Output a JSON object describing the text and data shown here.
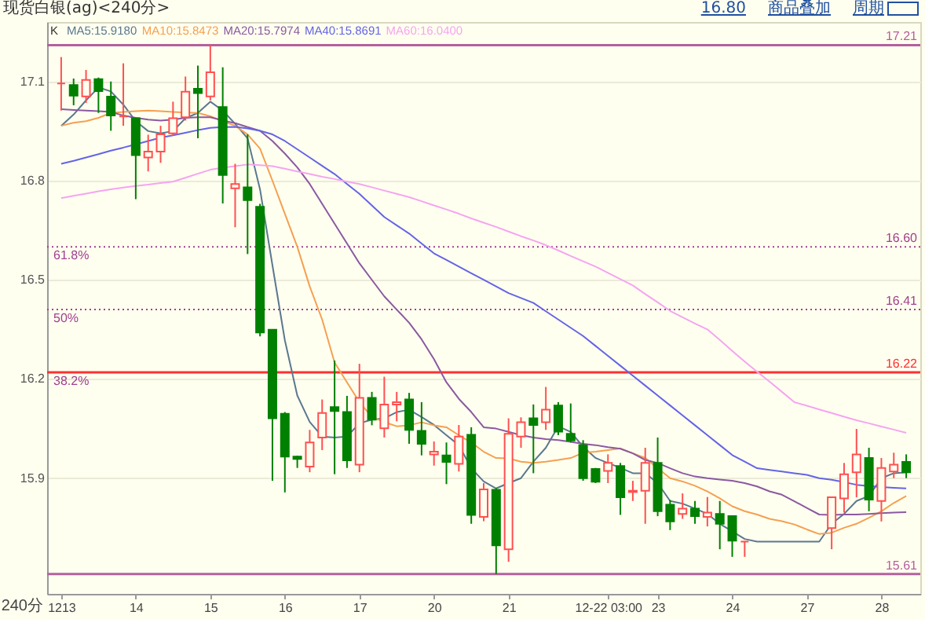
{
  "chart_data": {
    "type": "candlestick",
    "title": "现货白银(ag)<240分>",
    "legend_title": "K",
    "xlabel": "240分",
    "categories": [
      "1213",
      null,
      null,
      null,
      null,
      null,
      "14",
      null,
      null,
      null,
      null,
      null,
      "15",
      null,
      null,
      null,
      null,
      null,
      "16",
      null,
      null,
      null,
      null,
      null,
      "17",
      null,
      null,
      null,
      null,
      null,
      "20",
      null,
      null,
      null,
      null,
      null,
      "21",
      null,
      null,
      null,
      null,
      null,
      null,
      null,
      "12-22 03:00",
      null,
      null,
      null,
      "23",
      null,
      null,
      null,
      null,
      null,
      "24",
      null,
      null,
      null,
      null,
      null,
      "27",
      null,
      null,
      null,
      null,
      null,
      "28",
      null,
      null
    ],
    "ohlc": [
      [
        17.094,
        17.174,
        17.012,
        17.094
      ],
      [
        17.089,
        17.109,
        17.028,
        17.057
      ],
      [
        17.055,
        17.135,
        17.035,
        17.105
      ],
      [
        17.107,
        17.112,
        17.005,
        17.071
      ],
      [
        17.054,
        17.1,
        16.951,
        16.997
      ],
      [
        16.994,
        17.155,
        16.966,
        16.994
      ],
      [
        16.989,
        16.99,
        16.744,
        16.877
      ],
      [
        16.87,
        16.939,
        16.828,
        16.888
      ],
      [
        16.888,
        16.966,
        16.854,
        16.94
      ],
      [
        16.943,
        17.039,
        16.936,
        16.989
      ],
      [
        16.992,
        17.115,
        16.982,
        17.069
      ],
      [
        17.078,
        17.148,
        16.928,
        17.065
      ],
      [
        17.055,
        17.21,
        17.043,
        17.128
      ],
      [
        17.023,
        17.143,
        16.731,
        16.817
      ],
      [
        16.777,
        16.851,
        16.659,
        16.79
      ],
      [
        16.78,
        16.94,
        16.578,
        16.741
      ],
      [
        16.721,
        16.73,
        16.329,
        16.341
      ],
      [
        16.349,
        16.35,
        15.892,
        16.081
      ],
      [
        16.095,
        16.1,
        15.857,
        15.965
      ],
      [
        15.965,
        15.968,
        15.931,
        15.958
      ],
      [
        15.935,
        16.046,
        15.918,
        16.008
      ],
      [
        16.023,
        16.138,
        15.985,
        16.097
      ],
      [
        16.115,
        16.256,
        15.912,
        16.103
      ],
      [
        16.1,
        16.149,
        15.931,
        15.954
      ],
      [
        15.941,
        16.246,
        15.918,
        16.143
      ],
      [
        16.143,
        16.161,
        16.06,
        16.077
      ],
      [
        16.051,
        16.207,
        16.023,
        16.123
      ],
      [
        16.123,
        16.161,
        16.072,
        16.13
      ],
      [
        16.138,
        16.158,
        16.004,
        16.046
      ],
      [
        16.043,
        16.13,
        15.969,
        16.004
      ],
      [
        15.972,
        16.011,
        15.938,
        15.98
      ],
      [
        15.969,
        16.008,
        15.882,
        15.949
      ],
      [
        15.943,
        16.061,
        15.92,
        16.026
      ],
      [
        16.031,
        16.054,
        15.762,
        15.789
      ],
      [
        15.783,
        15.885,
        15.77,
        15.866
      ],
      [
        15.865,
        15.87,
        15.61,
        15.697
      ],
      [
        15.685,
        16.081,
        15.647,
        16.034
      ],
      [
        16.026,
        16.084,
        15.992,
        16.069
      ],
      [
        16.081,
        16.123,
        15.915,
        16.061
      ],
      [
        16.069,
        16.176,
        16.046,
        16.107
      ],
      [
        16.12,
        16.13,
        16.03,
        16.041
      ],
      [
        16.034,
        16.126,
        16.008,
        16.014
      ],
      [
        16.0,
        16.015,
        15.892,
        15.9
      ],
      [
        15.928,
        15.931,
        15.885,
        15.889
      ],
      [
        15.922,
        15.972,
        15.885,
        15.946
      ],
      [
        15.937,
        15.946,
        15.789,
        15.842
      ],
      [
        15.858,
        15.892,
        15.831,
        15.862
      ],
      [
        15.862,
        15.992,
        15.762,
        15.946
      ],
      [
        15.946,
        16.023,
        15.785,
        15.8
      ],
      [
        15.82,
        15.834,
        15.743,
        15.769
      ],
      [
        15.792,
        15.854,
        15.777,
        15.808
      ],
      [
        15.808,
        15.831,
        15.762,
        15.785
      ],
      [
        15.783,
        15.843,
        15.754,
        15.796
      ],
      [
        15.792,
        15.831,
        15.685,
        15.762
      ],
      [
        15.785,
        15.787,
        15.662,
        15.711
      ],
      [
        15.708,
        15.71,
        15.662,
        15.708
      ],
      null,
      null,
      null,
      null,
      null,
      null,
      [
        15.749,
        15.842,
        15.685,
        15.842
      ],
      [
        15.839,
        15.946,
        15.796,
        15.912
      ],
      [
        15.918,
        16.049,
        15.842,
        15.972
      ],
      [
        15.961,
        15.992,
        15.8,
        15.835
      ],
      [
        15.831,
        15.961,
        15.769,
        15.931
      ],
      [
        15.92,
        15.977,
        15.9,
        15.941
      ],
      [
        15.949,
        15.972,
        15.9,
        15.918
      ]
    ],
    "colors": [
      "#ff5050",
      "#008000",
      "#ff5050",
      "#008000",
      "#008000",
      "#ff5050",
      "#008000",
      "#ff5050",
      "#ff5050",
      "#ff5050",
      "#ff5050",
      "#008000",
      "#ff5050",
      "#008000",
      "#ff5050",
      "#008000",
      "#008000",
      "#008000",
      "#008000",
      "#008000",
      "#ff5050",
      "#ff5050",
      "#008000",
      "#008000",
      "#ff5050",
      "#008000",
      "#ff5050",
      "#ff5050",
      "#008000",
      "#008000",
      "#ff5050",
      "#008000",
      "#ff5050",
      "#008000",
      "#ff5050",
      "#008000",
      "#ff5050",
      "#ff5050",
      "#008000",
      "#ff5050",
      "#008000",
      "#008000",
      "#008000",
      "#008000",
      "#ff5050",
      "#008000",
      "#ff5050",
      "#ff5050",
      "#008000",
      "#008000",
      "#ff5050",
      "#008000",
      "#ff5050",
      "#008000",
      "#008000",
      "#ff5050",
      null,
      null,
      null,
      null,
      null,
      null,
      "#ff5050",
      "#ff5050",
      "#ff5050",
      "#008000",
      "#ff5050",
      "#ff5050",
      "#008000"
    ],
    "series": [
      {
        "name": "MA5:15.9180",
        "type": "line",
        "color": "#5a7890",
        "values": [
          16.966,
          17.0,
          17.043,
          17.082,
          17.07,
          17.03,
          16.98,
          16.95,
          16.943,
          16.95,
          16.989,
          17.005,
          17.039,
          17.012,
          16.972,
          16.928,
          16.774,
          16.544,
          16.317,
          16.15,
          16.07,
          16.026,
          16.023,
          16.026,
          16.066,
          16.077,
          16.081,
          16.1,
          16.107,
          16.085,
          16.061,
          16.03,
          16.0,
          15.93,
          15.89,
          15.869,
          15.885,
          15.9,
          15.95,
          15.992,
          16.057,
          16.04,
          15.995,
          15.961,
          15.946,
          15.931,
          15.915,
          15.915,
          15.885,
          15.831,
          15.823,
          15.808,
          15.792,
          15.762,
          15.739,
          15.716,
          15.708,
          15.708,
          15.708,
          15.708,
          15.708,
          15.708,
          15.762,
          15.792,
          15.831,
          15.846,
          15.9,
          15.915,
          15.918
        ]
      },
      {
        "name": "MA10:15.8473",
        "type": "line",
        "color": "#f5a050",
        "values": [
          16.966,
          16.975,
          16.98,
          16.99,
          17.005,
          17.008,
          17.01,
          17.012,
          17.01,
          17.008,
          17.006,
          17.005,
          16.995,
          16.98,
          16.966,
          16.94,
          16.897,
          16.8,
          16.7,
          16.6,
          16.48,
          16.38,
          16.25,
          16.19,
          16.13,
          16.085,
          16.07,
          16.057,
          16.06,
          16.069,
          16.06,
          16.054,
          16.03,
          16.008,
          15.98,
          15.961,
          15.96,
          15.95,
          15.946,
          15.95,
          15.955,
          15.961,
          15.977,
          15.98,
          15.985,
          15.99,
          15.975,
          15.961,
          15.93,
          15.9,
          15.89,
          15.877,
          15.86,
          15.839,
          15.815,
          15.8,
          15.79,
          15.777,
          15.77,
          15.76,
          15.745,
          15.731,
          15.735,
          15.75,
          15.762,
          15.78,
          15.8,
          15.825,
          15.846
        ]
      },
      {
        "name": "MA20:15.7974",
        "type": "line",
        "color": "#8a5aa0",
        "values": [
          17.016,
          17.014,
          17.012,
          17.01,
          17.008,
          16.997,
          16.99,
          16.985,
          16.982,
          16.985,
          16.99,
          16.992,
          16.992,
          16.982,
          16.974,
          16.962,
          16.951,
          16.92,
          16.882,
          16.84,
          16.79,
          16.73,
          16.67,
          16.61,
          16.55,
          16.5,
          16.45,
          16.41,
          16.37,
          16.32,
          16.26,
          16.19,
          16.14,
          16.1,
          16.054,
          16.05,
          16.04,
          16.03,
          16.023,
          16.018,
          16.015,
          16.01,
          16.004,
          16.0,
          15.994,
          15.989,
          15.975,
          15.955,
          15.946,
          15.93,
          15.915,
          15.905,
          15.9,
          15.896,
          15.892,
          15.885,
          15.875,
          15.86,
          15.85,
          15.83,
          15.81,
          15.79,
          15.789,
          15.79,
          15.79,
          15.792,
          15.794,
          15.796,
          15.797
        ]
      },
      {
        "name": "MA40:15.8691",
        "type": "line",
        "color": "#6464e6",
        "values": [
          16.851,
          16.86,
          16.87,
          16.88,
          16.891,
          16.9,
          16.91,
          16.92,
          16.93,
          16.937,
          16.945,
          16.953,
          16.96,
          16.962,
          16.963,
          16.958,
          16.951,
          16.94,
          16.92,
          16.895,
          16.87,
          16.845,
          16.82,
          16.79,
          16.76,
          16.725,
          16.69,
          16.665,
          16.64,
          16.61,
          16.58,
          16.56,
          16.54,
          16.52,
          16.5,
          16.48,
          16.46,
          16.445,
          16.43,
          16.405,
          16.38,
          16.355,
          16.33,
          16.3,
          16.27,
          16.24,
          16.21,
          16.18,
          16.15,
          16.12,
          16.09,
          16.06,
          16.03,
          16.0,
          15.97,
          15.95,
          15.93,
          15.925,
          15.92,
          15.915,
          15.91,
          15.9,
          15.895,
          15.888,
          15.88,
          15.876,
          15.873,
          15.871,
          15.869
        ]
      },
      {
        "name": "MA60:16.0400",
        "type": "line",
        "color": "#f5a5f0",
        "values": [
          16.747,
          16.754,
          16.761,
          16.768,
          16.774,
          16.779,
          16.784,
          16.788,
          16.793,
          16.797,
          16.809,
          16.821,
          16.833,
          16.839,
          16.844,
          16.849,
          16.847,
          16.844,
          16.836,
          16.828,
          16.82,
          16.812,
          16.805,
          16.797,
          16.79,
          16.78,
          16.77,
          16.76,
          16.75,
          16.738,
          16.725,
          16.713,
          16.7,
          16.686,
          16.673,
          16.66,
          16.646,
          16.632,
          16.619,
          16.605,
          16.589,
          16.572,
          16.556,
          16.54,
          16.521,
          16.502,
          16.483,
          16.457,
          16.432,
          16.406,
          16.387,
          16.368,
          16.35,
          16.318,
          16.285,
          16.253,
          16.222,
          16.192,
          16.161,
          16.13,
          16.119,
          16.108,
          16.097,
          16.086,
          16.075,
          16.066,
          16.056,
          16.047,
          16.037
        ]
      }
    ],
    "ylim": [
      15.55,
      17.28
    ],
    "yticks": [
      15.9,
      16.2,
      16.5,
      16.8,
      17.1
    ],
    "grid": "y",
    "legend": "top left",
    "ref_lines": [
      {
        "axis": "y",
        "value": 17.21,
        "label": "17.21",
        "color": "#b4609e",
        "line_style": "solid"
      },
      {
        "axis": "y",
        "value": 16.6,
        "label": "16.60",
        "color": "#a0408c",
        "line_style": "dotted"
      },
      {
        "axis": "y",
        "value": 16.41,
        "label": "16.41",
        "color": "#a0408c",
        "line_style": "dotted"
      },
      {
        "axis": "y",
        "value": 16.22,
        "label": "16.22",
        "color": "#ff3030",
        "line_style": "solid"
      },
      {
        "axis": "y",
        "value": 15.61,
        "label": "15.61",
        "color": "#b4609e",
        "line_style": "solid"
      }
    ],
    "annotations": [
      {
        "text": "61.8%",
        "y": 16.6
      },
      {
        "text": "50%",
        "y": 16.41
      },
      {
        "text": "38.2%",
        "y": 16.22
      },
      "16.80",
      "商品叠加",
      "周期"
    ]
  }
}
